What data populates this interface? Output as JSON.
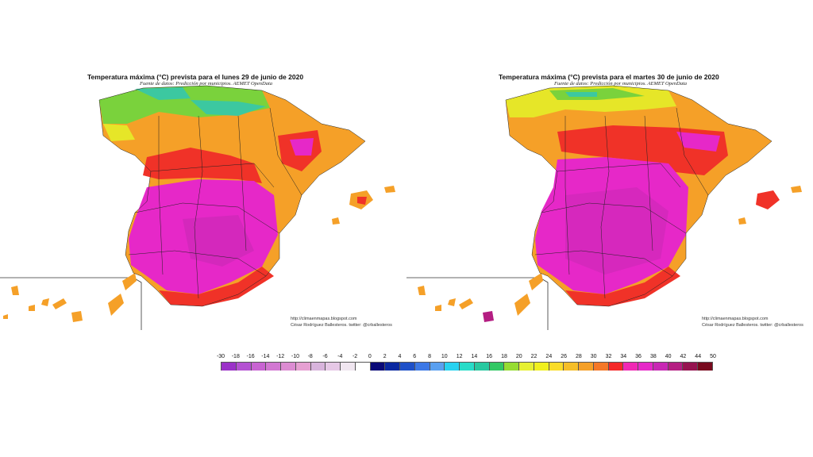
{
  "maps": [
    {
      "title": "Temperatura máxima (°C) prevista para el lunes 29 de junio de 2020",
      "source": "Fuente de datos: Predicción por municipios. AEMET OpenData",
      "credit_url": "http://climaenmapas.blogspot.com",
      "credit_author": "César Rodríguez Ballesteros. twitter: @crballesteros"
    },
    {
      "title": "Temperatura máxima (°C) prevista para el martes 30 de junio de 2020",
      "source": "Fuente de datos: Predicción por municipios. AEMET OpenData",
      "credit_url": "http://climaenmapas.blogspot.com",
      "credit_author": "César Rodríguez Ballesteros. twitter: @crballesteros"
    }
  ],
  "legend": {
    "ticks": [
      "-30",
      "-18",
      "-16",
      "-14",
      "-12",
      "-10",
      "-8",
      "-6",
      "-4",
      "-2",
      "0",
      "2",
      "4",
      "6",
      "8",
      "10",
      "12",
      "14",
      "16",
      "18",
      "20",
      "22",
      "24",
      "26",
      "28",
      "30",
      "32",
      "34",
      "36",
      "38",
      "40",
      "42",
      "44",
      "50"
    ],
    "colors": [
      "#9b32c8",
      "#b452d2",
      "#c864d2",
      "#d278d2",
      "#dc8cd2",
      "#e6a0d2",
      "#d8b4dc",
      "#e6c8e6",
      "#f0e6f0",
      "#ffffff",
      "#0a0a78",
      "#0a28a0",
      "#1e50c8",
      "#3c78e6",
      "#5aa0f0",
      "#28d2f0",
      "#28dcc8",
      "#28c8a0",
      "#32c864",
      "#96dc32",
      "#e6f032",
      "#f0f01e",
      "#fadc28",
      "#f5be28",
      "#f5a028",
      "#f57828",
      "#f52828",
      "#f028b4",
      "#e628c8",
      "#c828b4",
      "#b41e82",
      "#961450",
      "#780a1e"
    ]
  },
  "colors": {
    "north_green": "#7ad23c",
    "teal": "#3cc8a0",
    "yellow": "#e6e628",
    "orange": "#f5a028",
    "red": "#f03228",
    "magenta": "#e628c8",
    "purple": "#b428aa"
  }
}
